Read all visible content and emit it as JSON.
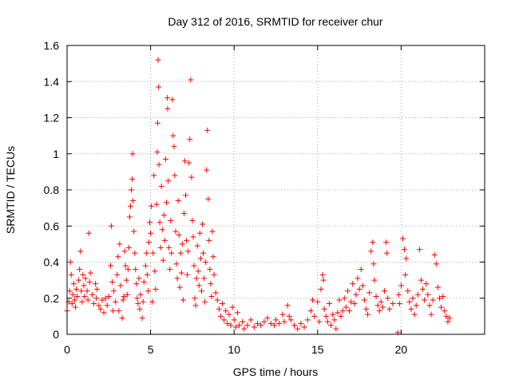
{
  "chart_data": {
    "type": "scatter",
    "title": "Day 312 of 2016, SRMTID for receiver chur",
    "xlabel": "GPS time / hours",
    "ylabel": "SRMTID / TECUs",
    "xlim": [
      0,
      25
    ],
    "ylim": [
      0,
      1.6
    ],
    "x_ticks": [
      0,
      5,
      10,
      15,
      20
    ],
    "x_tick_labels": [
      "0",
      "5",
      "10",
      "15",
      "20"
    ],
    "y_ticks": [
      0,
      0.2,
      0.4,
      0.6,
      0.8,
      1,
      1.2,
      1.4,
      1.6
    ],
    "y_tick_labels": [
      "0",
      "0.2",
      "0.4",
      "0.6",
      "0.8",
      "1",
      "1.2",
      "1.4",
      "1.6"
    ],
    "grid": true,
    "marker": "+",
    "series": [
      {
        "name": "SRMTID",
        "color": "#ff0000",
        "points": [
          [
            0.0,
            0.13
          ],
          [
            0.1,
            0.18
          ],
          [
            0.15,
            0.24
          ],
          [
            0.2,
            0.4
          ],
          [
            0.25,
            0.33
          ],
          [
            0.3,
            0.17
          ],
          [
            0.35,
            0.22
          ],
          [
            0.4,
            0.28
          ],
          [
            0.45,
            0.19
          ],
          [
            0.5,
            0.15
          ],
          [
            0.55,
            0.25
          ],
          [
            0.6,
            0.21
          ],
          [
            0.7,
            0.3
          ],
          [
            0.75,
            0.36
          ],
          [
            0.8,
            0.46
          ],
          [
            0.85,
            0.24
          ],
          [
            0.9,
            0.18
          ],
          [
            0.95,
            0.33
          ],
          [
            1.0,
            0.27
          ],
          [
            1.05,
            0.21
          ],
          [
            1.1,
            0.31
          ],
          [
            1.2,
            0.24
          ],
          [
            1.25,
            0.19
          ],
          [
            1.3,
            0.56
          ],
          [
            1.35,
            0.29
          ],
          [
            1.4,
            0.34
          ],
          [
            1.5,
            0.22
          ],
          [
            1.6,
            0.17
          ],
          [
            1.7,
            0.28
          ],
          [
            1.75,
            0.2
          ],
          [
            1.8,
            0.25
          ],
          [
            1.9,
            0.16
          ],
          [
            2.0,
            0.14
          ],
          [
            2.1,
            0.19
          ],
          [
            2.2,
            0.12
          ],
          [
            2.3,
            0.2
          ],
          [
            2.4,
            0.16
          ],
          [
            2.5,
            0.21
          ],
          [
            2.6,
            0.38
          ],
          [
            2.65,
            0.6
          ],
          [
            2.7,
            0.29
          ],
          [
            2.75,
            0.13
          ],
          [
            2.8,
            0.24
          ],
          [
            2.9,
            0.18
          ],
          [
            3.0,
            0.33
          ],
          [
            3.05,
            0.43
          ],
          [
            3.1,
            0.13
          ],
          [
            3.15,
            0.5
          ],
          [
            3.2,
            0.27
          ],
          [
            3.3,
            0.09
          ],
          [
            3.35,
            0.19
          ],
          [
            3.4,
            0.21
          ],
          [
            3.45,
            0.46
          ],
          [
            3.5,
            0.38
          ],
          [
            3.55,
            0.3
          ],
          [
            3.6,
            0.22
          ],
          [
            3.65,
            0.36
          ],
          [
            3.7,
            0.48
          ],
          [
            3.75,
            0.65
          ],
          [
            3.8,
            0.71
          ],
          [
            3.85,
            0.8
          ],
          [
            3.9,
            0.86
          ],
          [
            3.92,
            1.0
          ],
          [
            3.95,
            0.74
          ],
          [
            4.0,
            0.57
          ],
          [
            4.05,
            0.45
          ],
          [
            4.1,
            0.36
          ],
          [
            4.15,
            0.28
          ],
          [
            4.2,
            0.2
          ],
          [
            4.25,
            0.17
          ],
          [
            4.3,
            0.31
          ],
          [
            4.35,
            0.14
          ],
          [
            4.4,
            0.22
          ],
          [
            4.5,
            0.09
          ],
          [
            4.55,
            0.18
          ],
          [
            4.6,
            0.29
          ],
          [
            4.7,
            0.38
          ],
          [
            4.75,
            0.45
          ],
          [
            4.8,
            0.33
          ],
          [
            4.85,
            0.24
          ],
          [
            4.9,
            0.51
          ],
          [
            4.95,
            0.62
          ],
          [
            5.0,
            0.56
          ],
          [
            5.05,
            0.71
          ],
          [
            5.1,
            0.18
          ],
          [
            5.15,
            0.45
          ],
          [
            5.2,
            0.88
          ],
          [
            5.25,
            0.35
          ],
          [
            5.3,
            0.25
          ],
          [
            5.35,
            0.72
          ],
          [
            5.4,
            1.01
          ],
          [
            5.42,
            1.17
          ],
          [
            5.45,
            1.52
          ],
          [
            5.48,
            1.37
          ],
          [
            5.5,
            0.94
          ],
          [
            5.55,
            0.62
          ],
          [
            5.6,
            0.48
          ],
          [
            5.65,
            0.82
          ],
          [
            5.7,
            0.58
          ],
          [
            5.75,
            0.41
          ],
          [
            5.8,
            0.66
          ],
          [
            5.85,
            0.52
          ],
          [
            5.9,
            0.97
          ],
          [
            5.95,
            0.73
          ],
          [
            6.0,
            1.31
          ],
          [
            6.02,
            1.25
          ],
          [
            6.05,
            0.85
          ],
          [
            6.1,
            0.48
          ],
          [
            6.15,
            0.36
          ],
          [
            6.2,
            0.63
          ],
          [
            6.25,
            0.45
          ],
          [
            6.3,
            1.3
          ],
          [
            6.35,
            1.1
          ],
          [
            6.4,
            1.04
          ],
          [
            6.45,
            0.88
          ],
          [
            6.5,
            0.57
          ],
          [
            6.55,
            0.39
          ],
          [
            6.6,
            0.31
          ],
          [
            6.65,
            0.74
          ],
          [
            6.7,
            0.55
          ],
          [
            6.75,
            0.26
          ],
          [
            6.8,
            0.45
          ],
          [
            6.85,
            0.34
          ],
          [
            6.9,
            0.5
          ],
          [
            6.95,
            0.19
          ],
          [
            7.0,
            0.67
          ],
          [
            7.05,
            0.96
          ],
          [
            7.1,
            0.77
          ],
          [
            7.15,
            0.52
          ],
          [
            7.2,
            0.33
          ],
          [
            7.25,
            0.46
          ],
          [
            7.3,
            0.95
          ],
          [
            7.35,
            1.08
          ],
          [
            7.4,
            1.41
          ],
          [
            7.45,
            0.87
          ],
          [
            7.5,
            0.63
          ],
          [
            7.55,
            0.54
          ],
          [
            7.6,
            0.38
          ],
          [
            7.65,
            0.2
          ],
          [
            7.7,
            0.16
          ],
          [
            7.75,
            0.31
          ],
          [
            7.8,
            0.49
          ],
          [
            7.85,
            0.35
          ],
          [
            7.9,
            0.27
          ],
          [
            7.95,
            0.56
          ],
          [
            8.0,
            0.42
          ],
          [
            8.05,
            0.24
          ],
          [
            8.1,
            0.61
          ],
          [
            8.15,
            0.45
          ],
          [
            8.2,
            0.31
          ],
          [
            8.25,
            0.18
          ],
          [
            8.3,
            0.4
          ],
          [
            8.35,
            0.91
          ],
          [
            8.4,
            1.13
          ],
          [
            8.45,
            0.75
          ],
          [
            8.5,
            0.52
          ],
          [
            8.55,
            0.36
          ],
          [
            8.6,
            0.28
          ],
          [
            8.65,
            0.21
          ],
          [
            8.7,
            0.57
          ],
          [
            8.75,
            0.43
          ],
          [
            8.8,
            0.33
          ],
          [
            8.9,
            0.23
          ],
          [
            9.0,
            0.19
          ],
          [
            9.1,
            0.14
          ],
          [
            9.2,
            0.1
          ],
          [
            9.3,
            0.17
          ],
          [
            9.4,
            0.08
          ],
          [
            9.5,
            0.13
          ],
          [
            9.6,
            0.06
          ],
          [
            9.7,
            0.11
          ],
          [
            9.8,
            0.05
          ],
          [
            9.9,
            0.15
          ],
          [
            10.0,
            0.08
          ],
          [
            10.1,
            0.04
          ],
          [
            10.2,
            0.12
          ],
          [
            10.3,
            0.05
          ],
          [
            10.5,
            0.07
          ],
          [
            10.6,
            0.03
          ],
          [
            10.8,
            0.05
          ],
          [
            11.0,
            0.08
          ],
          [
            11.2,
            0.04
          ],
          [
            11.4,
            0.06
          ],
          [
            11.6,
            0.05
          ],
          [
            11.8,
            0.07
          ],
          [
            12.0,
            0.09
          ],
          [
            12.2,
            0.06
          ],
          [
            12.4,
            0.05
          ],
          [
            12.5,
            0.08
          ],
          [
            12.7,
            0.06
          ],
          [
            12.9,
            0.11
          ],
          [
            13.0,
            0.07
          ],
          [
            13.2,
            0.16
          ],
          [
            13.3,
            0.1
          ],
          [
            13.4,
            0.08
          ],
          [
            13.6,
            0.05
          ],
          [
            13.8,
            0.03
          ],
          [
            14.0,
            0.06
          ],
          [
            14.2,
            0.04
          ],
          [
            14.4,
            0.08
          ],
          [
            14.6,
            0.13
          ],
          [
            14.7,
            0.19
          ],
          [
            14.8,
            0.1
          ],
          [
            15.0,
            0.18
          ],
          [
            15.1,
            0.07
          ],
          [
            15.2,
            0.25
          ],
          [
            15.3,
            0.33
          ],
          [
            15.35,
            0.3
          ],
          [
            15.4,
            0.14
          ],
          [
            15.5,
            0.1
          ],
          [
            15.6,
            0.07
          ],
          [
            15.7,
            0.17
          ],
          [
            15.8,
            0.05
          ],
          [
            15.9,
            0.11
          ],
          [
            16.0,
            0.08
          ],
          [
            16.1,
            0.03
          ],
          [
            16.2,
            0.12
          ],
          [
            16.3,
            0.19
          ],
          [
            16.4,
            0.1
          ],
          [
            16.5,
            0.13
          ],
          [
            16.6,
            0.2
          ],
          [
            16.7,
            0.15
          ],
          [
            16.8,
            0.24
          ],
          [
            16.9,
            0.13
          ],
          [
            17.0,
            0.18
          ],
          [
            17.1,
            0.28
          ],
          [
            17.2,
            0.17
          ],
          [
            17.3,
            0.22
          ],
          [
            17.4,
            0.31
          ],
          [
            17.5,
            0.25
          ],
          [
            17.6,
            0.36
          ],
          [
            17.7,
            0.27
          ],
          [
            17.8,
            0.19
          ],
          [
            17.9,
            0.14
          ],
          [
            18.0,
            0.11
          ],
          [
            18.1,
            0.23
          ],
          [
            18.2,
            0.46
          ],
          [
            18.3,
            0.51
          ],
          [
            18.35,
            0.39
          ],
          [
            18.4,
            0.3
          ],
          [
            18.5,
            0.21
          ],
          [
            18.6,
            0.16
          ],
          [
            18.7,
            0.13
          ],
          [
            18.8,
            0.18
          ],
          [
            18.9,
            0.15
          ],
          [
            19.0,
            0.24
          ],
          [
            19.1,
            0.51
          ],
          [
            19.15,
            0.45
          ],
          [
            19.2,
            0.2
          ],
          [
            19.3,
            0.14
          ],
          [
            19.5,
            0.17
          ],
          [
            19.8,
            0.01
          ],
          [
            19.85,
            0.22
          ],
          [
            19.9,
            0.17
          ],
          [
            20.0,
            0.27
          ],
          [
            20.1,
            0.53
          ],
          [
            20.2,
            0.47
          ],
          [
            20.25,
            0.33
          ],
          [
            20.3,
            0.42
          ],
          [
            20.4,
            0.24
          ],
          [
            20.5,
            0.18
          ],
          [
            20.6,
            0.14
          ],
          [
            20.7,
            0.2
          ],
          [
            20.8,
            0.11
          ],
          [
            20.9,
            0.16
          ],
          [
            21.0,
            0.22
          ],
          [
            21.1,
            0.47
          ],
          [
            21.2,
            0.3
          ],
          [
            21.3,
            0.25
          ],
          [
            21.4,
            0.19
          ],
          [
            21.5,
            0.28
          ],
          [
            21.6,
            0.22
          ],
          [
            21.7,
            0.16
          ],
          [
            21.8,
            0.11
          ],
          [
            21.9,
            0.19
          ],
          [
            22.0,
            0.44
          ],
          [
            22.1,
            0.39
          ],
          [
            22.2,
            0.26
          ],
          [
            22.3,
            0.2
          ],
          [
            22.4,
            0.15
          ],
          [
            22.5,
            0.21
          ],
          [
            22.6,
            0.13
          ],
          [
            22.7,
            0.1
          ],
          [
            22.8,
            0.07
          ],
          [
            22.9,
            0.09
          ]
        ]
      }
    ]
  }
}
